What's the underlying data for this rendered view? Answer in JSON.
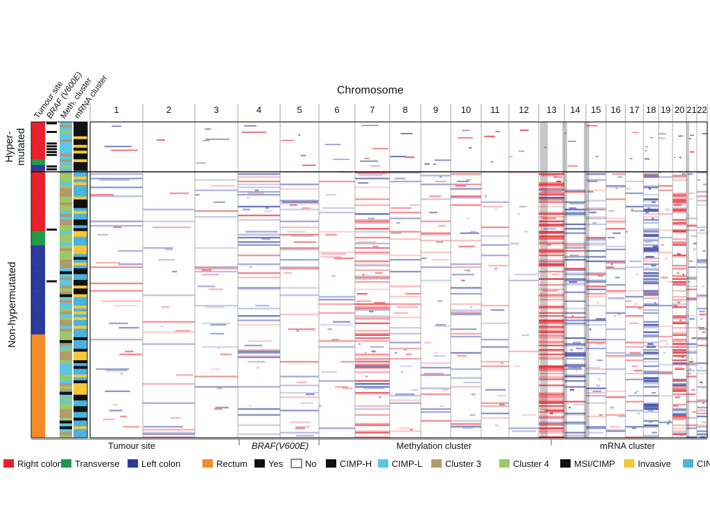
{
  "figure": {
    "top_title": "Chromosome",
    "chromosomes": [
      "1",
      "2",
      "3",
      "4",
      "5",
      "6",
      "7",
      "8",
      "9",
      "10",
      "11",
      "12",
      "13",
      "14",
      "15",
      "16",
      "17",
      "18",
      "19",
      "20",
      "21",
      "22"
    ],
    "annotation_track_labels": [
      "Tumour site",
      "BRAF (V600E)",
      "Meth. cluster",
      "mRNA cluster"
    ],
    "row_group_labels": {
      "hyper_line1": "Hyper-",
      "hyper_line2": "mutated",
      "non": "Non-hypermutated"
    },
    "section_labels": [
      "Tumour site",
      "BRAF(V600E)",
      "Methylation cluster",
      "mRNA cluster"
    ],
    "legend": [
      {
        "label": "Right colon",
        "color": "#e8202a"
      },
      {
        "label": "Transverse",
        "color": "#1f9a4a"
      },
      {
        "label": "Left colon",
        "color": "#2b3a9a"
      },
      {
        "label": "Rectum",
        "color": "#f28c28"
      },
      {
        "label": "Yes",
        "color": "#111111"
      },
      {
        "label": "No",
        "color": "#ffffff"
      },
      {
        "label": "CIMP-H",
        "color": "#111111"
      },
      {
        "label": "CIMP-L",
        "color": "#5bc8e8"
      },
      {
        "label": "Cluster 3",
        "color": "#b39a6b"
      },
      {
        "label": "Cluster 4",
        "color": "#9cc866"
      },
      {
        "label": "MSI/CIMP",
        "color": "#111111"
      },
      {
        "label": "Invasive",
        "color": "#f7c63a"
      },
      {
        "label": "CIN",
        "color": "#4bb3dc"
      }
    ],
    "colors": {
      "gain": "#e8202a",
      "loss": "#2b3a9a",
      "grey_band": "#b5b5b5"
    }
  }
}
